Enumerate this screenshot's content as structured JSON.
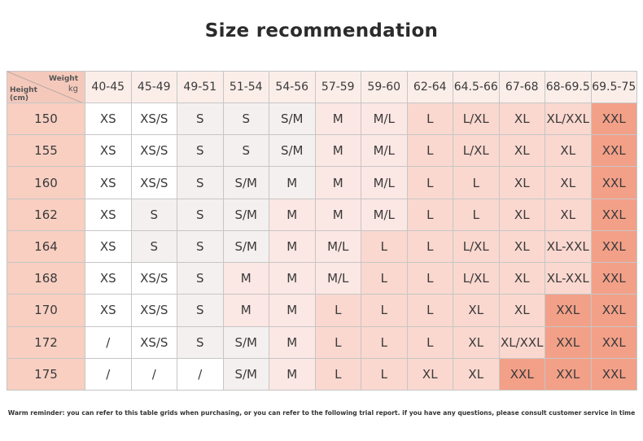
{
  "title": "Size recommendation",
  "corner": {
    "weight_label": "Weight",
    "weight_unit": "kg",
    "height_label": "Height",
    "height_unit": "(cm)"
  },
  "weights": [
    "40-45",
    "45-49",
    "49-51",
    "51-54",
    "54-56",
    "57-59",
    "59-60",
    "62-64",
    "64.5-66",
    "67-68",
    "68-69.5",
    "69.5-75"
  ],
  "rows": [
    {
      "height": "150",
      "cells": [
        "XS",
        "XS/S",
        "S",
        "S",
        "S/M",
        "M",
        "M/L",
        "L",
        "L/XL",
        "XL",
        "XL/XXL",
        "XXL"
      ]
    },
    {
      "height": "155",
      "cells": [
        "XS",
        "XS/S",
        "S",
        "S",
        "S/M",
        "M",
        "M/L",
        "L",
        "L/XL",
        "XL",
        "XL",
        "XXL"
      ]
    },
    {
      "height": "160",
      "cells": [
        "XS",
        "XS/S",
        "S",
        "S/M",
        "M",
        "M",
        "M/L",
        "L",
        "L",
        "XL",
        "XL",
        "XXL"
      ]
    },
    {
      "height": "162",
      "cells": [
        "XS",
        "S",
        "S",
        "S/M",
        "M",
        "M",
        "M/L",
        "L",
        "L",
        "XL",
        "XL",
        "XXL"
      ]
    },
    {
      "height": "164",
      "cells": [
        "XS",
        "S",
        "S",
        "S/M",
        "M",
        "M/L",
        "L",
        "L",
        "L/XL",
        "XL",
        "XL-XXL",
        "XXL"
      ]
    },
    {
      "height": "168",
      "cells": [
        "XS",
        "XS/S",
        "S",
        "M",
        "M",
        "M/L",
        "L",
        "L",
        "L/XL",
        "XL",
        "XL-XXL",
        "XXL"
      ]
    },
    {
      "height": "170",
      "cells": [
        "XS",
        "XS/S",
        "S",
        "M",
        "M",
        "L",
        "L",
        "L",
        "XL",
        "XL",
        "XXL",
        "XXL"
      ]
    },
    {
      "height": "172",
      "cells": [
        "/",
        "XS/S",
        "S",
        "S/M",
        "M",
        "L",
        "L",
        "L",
        "XL",
        "XL/XXL",
        "XXL",
        "XXL"
      ]
    },
    {
      "height": "175",
      "cells": [
        "/",
        "/",
        "/",
        "S/M",
        "M",
        "L",
        "L",
        "XL",
        "XL",
        "XXL",
        "XXL",
        "XXL"
      ]
    }
  ],
  "note": "Warm reminder: you can refer to this table grids when purchasing, or you can refer to the following trial report. if you have any questions, please consult customer service in time",
  "colors": {
    "white": "#ffffff",
    "grey": "#f4f0ef",
    "pale_pink": "#fbe7e3",
    "light_salmon": "#fad8cf",
    "salmon": "#f7b9a8",
    "deep_salmon": "#f3a088"
  }
}
